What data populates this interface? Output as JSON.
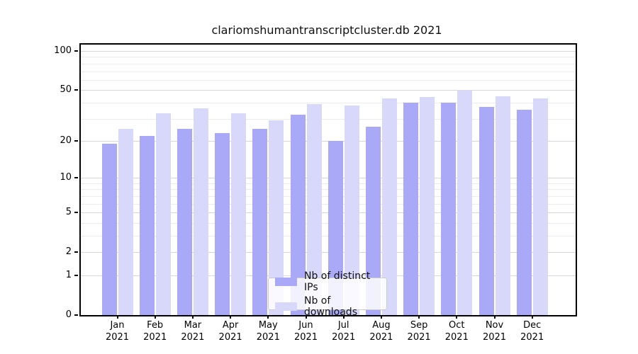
{
  "chart_data": {
    "type": "bar",
    "title": "clariomshumantranscriptcluster.db 2021",
    "categories": [
      "Jan",
      "Feb",
      "Mar",
      "Apr",
      "May",
      "Jun",
      "Jul",
      "Aug",
      "Sep",
      "Oct",
      "Nov",
      "Dec"
    ],
    "x_year": "2021",
    "series": [
      {
        "name": "Nb of distinct IPs",
        "color": "#a9a9f8",
        "values": [
          19,
          22,
          25,
          23,
          25,
          32,
          20,
          26,
          40,
          40,
          37,
          35
        ]
      },
      {
        "name": "Nb of downloads",
        "color": "#d8d8fa",
        "values": [
          25,
          33,
          36,
          33,
          29,
          39,
          38,
          43,
          44,
          50,
          45,
          43
        ]
      }
    ],
    "yscale": "log1p",
    "ylim": [
      0,
      112
    ],
    "yticks": [
      0,
      1,
      2,
      5,
      10,
      20,
      50,
      100
    ],
    "yticks_minor": [
      3,
      4,
      6,
      7,
      8,
      9,
      30,
      40,
      60,
      70,
      80,
      90
    ],
    "grid": true,
    "legend_position": "lower center"
  },
  "colors": {
    "grid_major": "#d6d6d6",
    "grid_minor": "#ececec",
    "spine": "#000000",
    "text": "#000000",
    "background": "#ffffff"
  }
}
